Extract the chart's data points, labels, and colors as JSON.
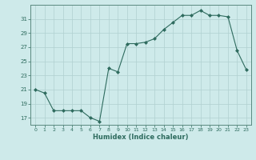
{
  "xlabel": "Humidex (Indice chaleur)",
  "ylabel": "",
  "x": [
    0,
    1,
    2,
    3,
    4,
    5,
    6,
    7,
    8,
    9,
    10,
    11,
    12,
    13,
    14,
    15,
    16,
    17,
    18,
    19,
    20,
    21,
    22,
    23
  ],
  "y": [
    21,
    20.5,
    18,
    18,
    18,
    18,
    17,
    16.5,
    24,
    23.5,
    27.5,
    27.5,
    27.7,
    28.2,
    29.5,
    30.5,
    31.5,
    31.5,
    32.2,
    31.5,
    31.5,
    31.3,
    26.5,
    23.8
  ],
  "line_color": "#2e6b5e",
  "marker": "D",
  "marker_size": 2,
  "bg_color": "#ceeaea",
  "grid_color": "#b0d0d0",
  "yticks": [
    17,
    19,
    21,
    23,
    25,
    27,
    29,
    31
  ],
  "ylim": [
    16,
    33
  ],
  "xlim": [
    -0.5,
    23.5
  ],
  "xticks": [
    0,
    1,
    2,
    3,
    4,
    5,
    6,
    7,
    8,
    9,
    10,
    11,
    12,
    13,
    14,
    15,
    16,
    17,
    18,
    19,
    20,
    21,
    22,
    23
  ]
}
